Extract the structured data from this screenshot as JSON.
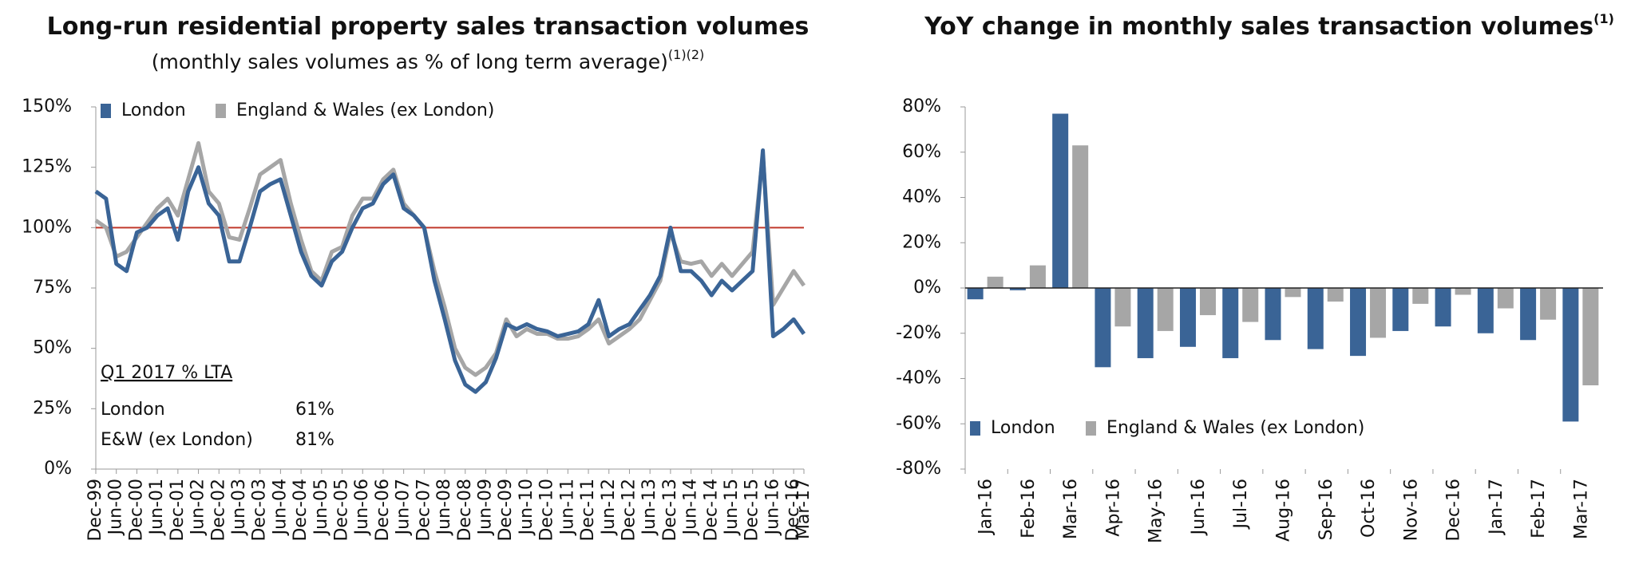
{
  "chart_data": [
    {
      "type": "line",
      "title": "Long-run residential property sales transaction volumes",
      "subtitle": "(monthly sales volumes as % of long term average)",
      "subtitle_note": "(1)(2)",
      "categories": [
        "Dec-99",
        null,
        "Jun-00",
        null,
        "Dec-00",
        null,
        "Jun-01",
        null,
        "Dec-01",
        null,
        "Jun-02",
        null,
        "Dec-02",
        null,
        "Jun-03",
        null,
        "Dec-03",
        null,
        "Jun-04",
        null,
        "Dec-04",
        null,
        "Jun-05",
        null,
        "Dec-05",
        null,
        "Jun-06",
        null,
        "Dec-06",
        null,
        "Jun-07",
        null,
        "Dec-07",
        null,
        "Jun-08",
        null,
        "Dec-08",
        null,
        "Jun-09",
        null,
        "Dec-09",
        null,
        "Jun-10",
        null,
        "Dec-10",
        null,
        "Jun-11",
        null,
        "Dec-11",
        null,
        "Jun-12",
        null,
        "Dec-12",
        null,
        "Jun-13",
        null,
        "Dec-13",
        null,
        "Jun-14",
        null,
        "Dec-14",
        null,
        "Jun-15",
        null,
        "Dec-15",
        null,
        "Jun-16",
        null,
        "Dec-16",
        "Mar-17"
      ],
      "series": [
        {
          "name": "London",
          "color": "#3a6496",
          "values": [
            115,
            112,
            85,
            82,
            98,
            100,
            105,
            108,
            95,
            115,
            125,
            110,
            105,
            86,
            86,
            100,
            115,
            118,
            120,
            105,
            90,
            80,
            76,
            86,
            90,
            100,
            108,
            110,
            118,
            122,
            108,
            105,
            100,
            78,
            62,
            45,
            35,
            32,
            36,
            46,
            60,
            58,
            60,
            58,
            57,
            55,
            56,
            57,
            60,
            70,
            55,
            58,
            60,
            66,
            72,
            80,
            100,
            82,
            82,
            78,
            72,
            78,
            74,
            78,
            82,
            132,
            55,
            58,
            62,
            56
          ]
        },
        {
          "name": "England & Wales (ex London)",
          "color": "#a6a6a6",
          "values": [
            103,
            100,
            88,
            90,
            96,
            102,
            108,
            112,
            105,
            120,
            135,
            115,
            110,
            96,
            95,
            108,
            122,
            125,
            128,
            110,
            95,
            82,
            78,
            90,
            92,
            105,
            112,
            112,
            120,
            124,
            110,
            105,
            100,
            82,
            67,
            50,
            42,
            39,
            42,
            48,
            62,
            55,
            58,
            56,
            56,
            54,
            54,
            55,
            58,
            62,
            52,
            55,
            58,
            62,
            70,
            78,
            98,
            86,
            85,
            86,
            80,
            85,
            80,
            85,
            90,
            130,
            68,
            75,
            82,
            76
          ]
        }
      ],
      "ylim": [
        0,
        150
      ],
      "yticks": [
        {
          "value": 0,
          "label": "0%"
        },
        {
          "value": 25,
          "label": "25%"
        },
        {
          "value": 50,
          "label": "50%"
        },
        {
          "value": 75,
          "label": "75%"
        },
        {
          "value": 100,
          "label": "100%"
        },
        {
          "value": 125,
          "label": "125%"
        },
        {
          "value": 150,
          "label": "150%"
        }
      ],
      "reference_line": {
        "value": 100,
        "color": "#c0392b"
      },
      "legend": "top-left",
      "annotation": {
        "heading": "Q1 2017 % LTA",
        "rows": [
          [
            "London",
            "61%"
          ],
          [
            "E&W (ex London)",
            "81%"
          ]
        ]
      }
    },
    {
      "type": "bar",
      "title": "YoY change in monthly sales transaction volumes",
      "title_note": "(1)",
      "categories": [
        "Jan-16",
        "Feb-16",
        "Mar-16",
        "Apr-16",
        "May-16",
        "Jun-16",
        "Jul-16",
        "Aug-16",
        "Sep-16",
        "Oct-16",
        "Nov-16",
        "Dec-16",
        "Jan-17",
        "Feb-17",
        "Mar-17"
      ],
      "series": [
        {
          "name": "London",
          "color": "#3a6496",
          "values": [
            -5,
            -1,
            77,
            -35,
            -31,
            -26,
            -31,
            -23,
            -27,
            -30,
            -19,
            -17,
            -20,
            -23,
            -59
          ]
        },
        {
          "name": "England & Wales (ex London)",
          "color": "#a6a6a6",
          "values": [
            5,
            10,
            63,
            -17,
            -19,
            -12,
            -15,
            -4,
            -6,
            -22,
            -7,
            -3,
            -9,
            -14,
            -43
          ]
        }
      ],
      "ylim": [
        -80,
        80
      ],
      "yticks": [
        {
          "value": -80,
          "label": "-80%"
        },
        {
          "value": -60,
          "label": "-60%"
        },
        {
          "value": -40,
          "label": "-40%"
        },
        {
          "value": -20,
          "label": "-20%"
        },
        {
          "value": 0,
          "label": "0%"
        },
        {
          "value": 20,
          "label": "20%"
        },
        {
          "value": 40,
          "label": "40%"
        },
        {
          "value": 60,
          "label": "60%"
        },
        {
          "value": 80,
          "label": "80%"
        }
      ],
      "legend": "bottom-left"
    }
  ]
}
